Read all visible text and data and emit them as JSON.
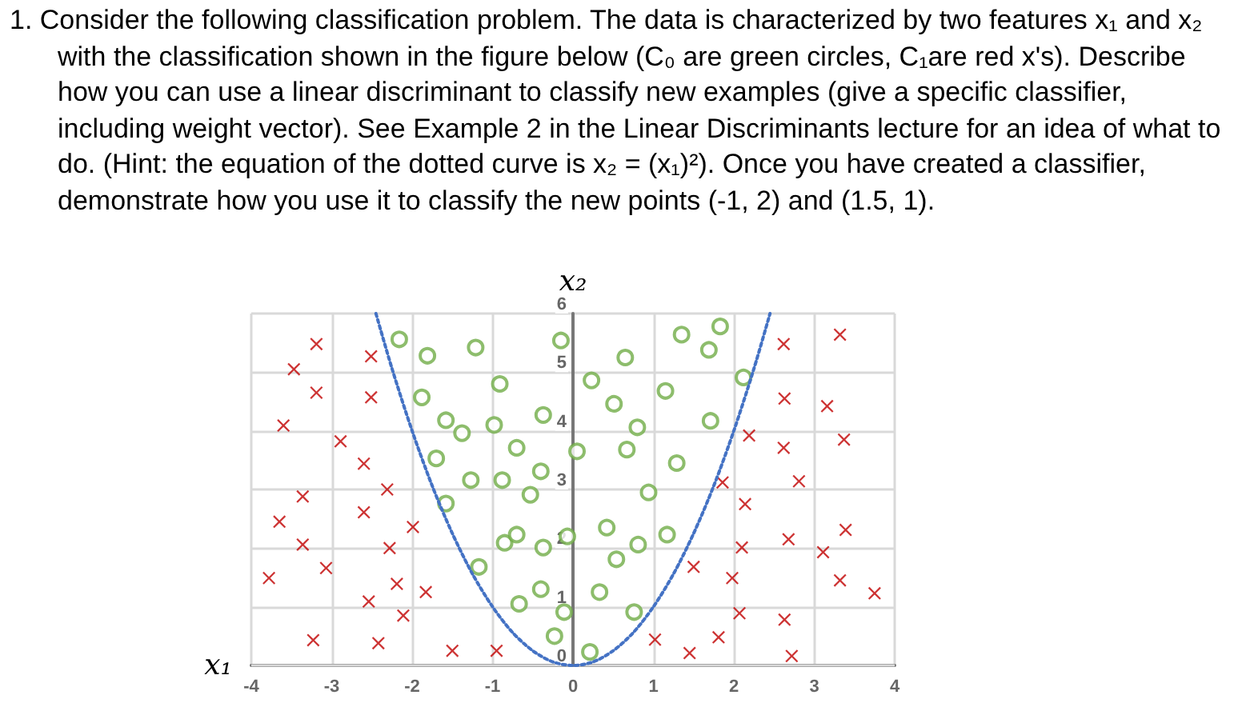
{
  "chart_data": {
    "type": "scatter",
    "title": "1.  Consider the following classification problem.  The data is characterized by two features x₁ and x₂ with the classification shown in the figure below (C₀ are green circles, C₁are red x's).  Describe how you can use a linear discriminant to classify new examples (give a specific classifier, including weight vector). See Example 2 in the Linear Discriminants lecture for an idea of what to do.  (Hint: the equation of the dotted curve is x₂ = (x₁)²).  Once you have created a classifier, demonstrate how you use it to classify the new points (-1, 2) and (1.5, 1).",
    "xlabel": "x₁",
    "ylabel": "x₂",
    "xlim": [
      -4,
      4
    ],
    "xticks": [
      -4,
      -3,
      -2,
      -1,
      0,
      1,
      2,
      3,
      4
    ],
    "ylim": [
      0,
      6
    ],
    "yticks": [
      0,
      1,
      2,
      3,
      4,
      5,
      6
    ],
    "grid": true,
    "series": [
      {
        "type": "scatter",
        "marker": "circle",
        "color": "#70ad47",
        "x": [
          -2.16,
          -1.81,
          -1.21,
          -0.91,
          -1.88,
          -1.58,
          -1.38,
          -0.98,
          -0.37,
          -0.7,
          -1.7,
          -1.27,
          -0.88,
          -0.4,
          -0.53,
          -1.58,
          -0.15,
          0.23,
          0.65,
          0.51,
          0.8,
          1.35,
          1.69,
          1.83,
          1.15,
          1.71,
          2.12,
          0.05,
          0.67,
          1.29,
          0.94,
          -0.85,
          -0.7,
          -0.37,
          -1.17,
          -0.4,
          -0.67,
          -0.07,
          0.42,
          0.81,
          1.17,
          0.54,
          0.33,
          -0.11,
          0.76,
          -0.23,
          0.21
        ],
        "values": [
          5.56,
          5.28,
          5.42,
          4.8,
          4.57,
          4.18,
          3.96,
          4.1,
          4.27,
          3.71,
          3.53,
          3.16,
          3.16,
          3.31,
          2.91,
          2.76,
          5.54,
          4.86,
          5.25,
          4.46,
          4.06,
          5.64,
          5.38,
          5.78,
          4.68,
          4.17,
          4.91,
          3.65,
          3.68,
          3.45,
          2.95,
          2.09,
          2.23,
          2.01,
          1.68,
          1.3,
          1.05,
          2.2,
          2.35,
          2.06,
          2.23,
          1.81,
          1.25,
          0.91,
          0.91,
          0.5,
          0.23
        ]
      },
      {
        "type": "scatter",
        "marker": "cross",
        "color": "#c00000",
        "x": [
          -3.19,
          -2.51,
          -3.47,
          -3.19,
          -2.51,
          -3.6,
          -2.89,
          -2.6,
          -2.31,
          -3.36,
          -3.65,
          -2.6,
          -1.99,
          -3.36,
          -2.28,
          -3.07,
          -3.78,
          -2.19,
          -1.83,
          -2.54,
          -2.11,
          -3.23,
          -2.42,
          -1.5,
          -0.95,
          2.62,
          3.32,
          2.63,
          3.16,
          2.19,
          3.37,
          2.62,
          1.86,
          2.81,
          2.14,
          1.5,
          2.1,
          2.68,
          3.39,
          3.11,
          1.98,
          3.32,
          3.75,
          2.07,
          2.63,
          1.02,
          1.45,
          1.81,
          2.72
        ],
        "values": [
          5.48,
          5.27,
          5.05,
          4.65,
          4.57,
          4.09,
          3.82,
          3.44,
          3.0,
          2.88,
          2.45,
          2.61,
          2.36,
          2.06,
          2.0,
          1.66,
          1.49,
          1.39,
          1.25,
          1.09,
          0.85,
          0.43,
          0.38,
          0.25,
          0.25,
          5.48,
          5.64,
          4.55,
          4.42,
          3.92,
          3.85,
          3.71,
          3.12,
          3.14,
          2.75,
          1.68,
          2.01,
          2.15,
          2.31,
          1.93,
          1.49,
          1.45,
          1.23,
          0.89,
          0.78,
          0.44,
          0.21,
          0.48,
          0.16
        ]
      },
      {
        "type": "line",
        "marker": "none",
        "line_style": "dotted",
        "color": "#4472c4",
        "x": [
          -2.45,
          -2.25,
          -2,
          -1.75,
          -1.5,
          -1.25,
          -1,
          -0.75,
          -0.5,
          -0.25,
          0,
          0.25,
          0.5,
          0.75,
          1,
          1.25,
          1.5,
          1.75,
          2,
          2.25,
          2.45
        ],
        "values": [
          6,
          5.06,
          4,
          3.06,
          2.25,
          1.56,
          1,
          0.56,
          0.25,
          0.06,
          0,
          0.06,
          0.25,
          0.56,
          1,
          1.56,
          2.25,
          3.06,
          4,
          5.06,
          6
        ]
      }
    ]
  }
}
